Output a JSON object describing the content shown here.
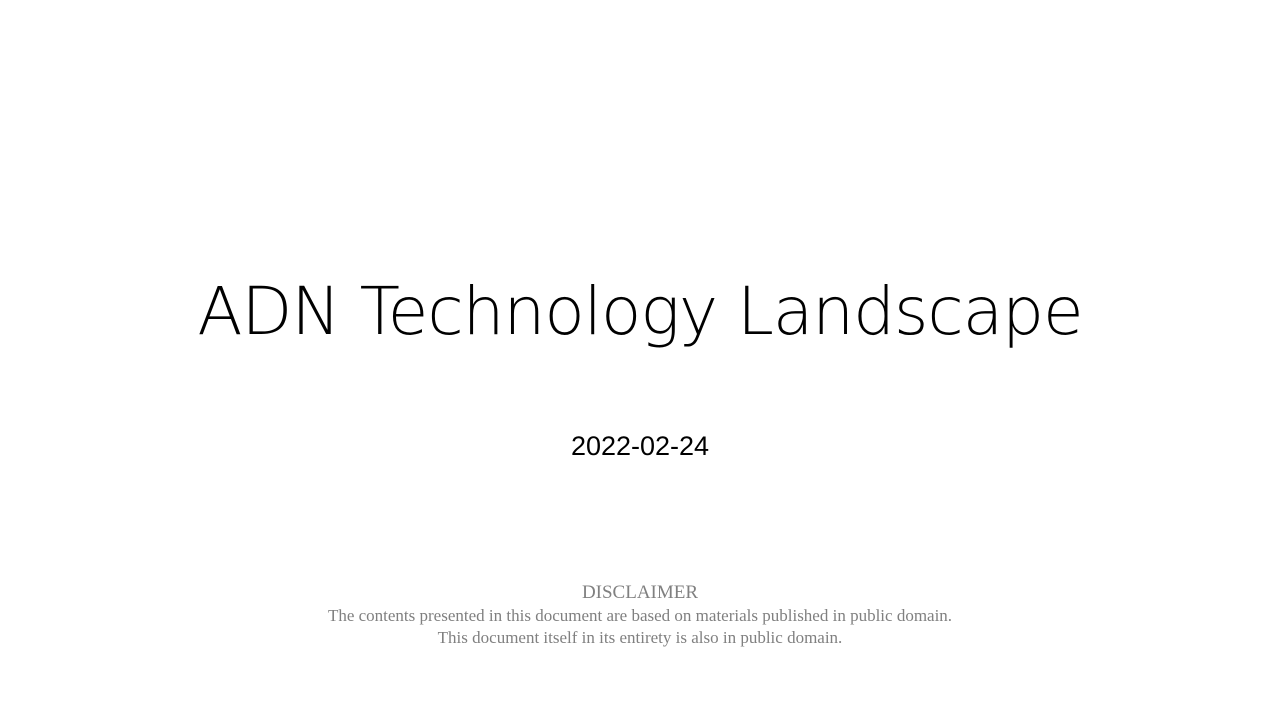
{
  "slide": {
    "title": "ADN Technology Landscape",
    "date": "2022-02-24",
    "disclaimer": {
      "heading": "DISCLAIMER",
      "line1": "The contents presented in this document are based on materials published in public domain.",
      "line2": "This document itself in its entirety is also in public domain."
    }
  },
  "colors": {
    "background": "#ffffff",
    "title": "#000000",
    "disclaimer": "#808080"
  }
}
